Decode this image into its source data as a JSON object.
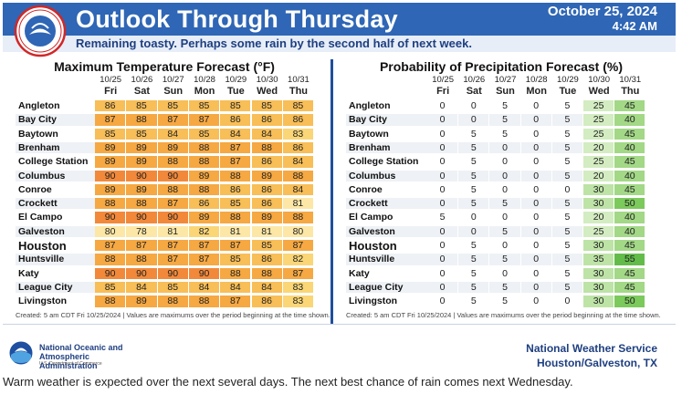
{
  "header": {
    "title": "Outlook Through Thursday",
    "subtitle": "Remaining toasty. Perhaps some rain by the second half of next week.",
    "date": "October 25, 2024",
    "time": "4:42 AM"
  },
  "days": [
    {
      "date": "10/25",
      "day": "Fri"
    },
    {
      "date": "10/26",
      "day": "Sat"
    },
    {
      "date": "10/27",
      "day": "Sun"
    },
    {
      "date": "10/28",
      "day": "Mon"
    },
    {
      "date": "10/29",
      "day": "Tue"
    },
    {
      "date": "10/30",
      "day": "Wed"
    },
    {
      "date": "10/31",
      "day": "Thu"
    }
  ],
  "cities": [
    "Angleton",
    "Bay City",
    "Baytown",
    "Brenham",
    "College Station",
    "Columbus",
    "Conroe",
    "Crockett",
    "El Campo",
    "Galveston",
    "Houston",
    "Huntsville",
    "Katy",
    "League City",
    "Livingston"
  ],
  "temperature": {
    "title": "Maximum Temperature Forecast (°F)",
    "values": [
      [
        86,
        85,
        85,
        85,
        85,
        85,
        85
      ],
      [
        87,
        88,
        87,
        87,
        86,
        86,
        86
      ],
      [
        85,
        85,
        84,
        85,
        84,
        84,
        83
      ],
      [
        89,
        89,
        89,
        88,
        87,
        88,
        86
      ],
      [
        89,
        89,
        88,
        88,
        87,
        86,
        84
      ],
      [
        90,
        90,
        90,
        89,
        88,
        89,
        88
      ],
      [
        89,
        89,
        88,
        88,
        86,
        86,
        84
      ],
      [
        88,
        88,
        87,
        86,
        85,
        86,
        81
      ],
      [
        90,
        90,
        90,
        89,
        88,
        89,
        88
      ],
      [
        80,
        78,
        81,
        82,
        81,
        81,
        80
      ],
      [
        87,
        87,
        87,
        87,
        87,
        85,
        87
      ],
      [
        88,
        88,
        87,
        87,
        85,
        86,
        82
      ],
      [
        90,
        90,
        90,
        90,
        88,
        88,
        87
      ],
      [
        85,
        84,
        85,
        84,
        84,
        84,
        83
      ],
      [
        88,
        89,
        88,
        88,
        87,
        86,
        83
      ]
    ],
    "footnote": "Created: 5 am CDT Fri 10/25/2024  |  Values are maximums over the period beginning at the time shown."
  },
  "precipitation": {
    "title": "Probability of Precipitation Forecast (%)",
    "values": [
      [
        0,
        0,
        5,
        0,
        5,
        25,
        45
      ],
      [
        0,
        0,
        5,
        0,
        5,
        25,
        40
      ],
      [
        0,
        5,
        5,
        0,
        5,
        25,
        45
      ],
      [
        0,
        5,
        0,
        0,
        5,
        20,
        40
      ],
      [
        0,
        5,
        0,
        0,
        5,
        25,
        45
      ],
      [
        0,
        5,
        0,
        0,
        5,
        20,
        40
      ],
      [
        0,
        5,
        0,
        0,
        0,
        30,
        45
      ],
      [
        0,
        5,
        5,
        0,
        5,
        30,
        50
      ],
      [
        5,
        0,
        0,
        0,
        5,
        20,
        40
      ],
      [
        0,
        0,
        5,
        0,
        5,
        25,
        40
      ],
      [
        0,
        5,
        0,
        0,
        5,
        30,
        45
      ],
      [
        0,
        5,
        5,
        0,
        5,
        35,
        55
      ],
      [
        0,
        5,
        0,
        0,
        5,
        30,
        45
      ],
      [
        0,
        5,
        5,
        0,
        5,
        30,
        45
      ],
      [
        0,
        5,
        5,
        0,
        0,
        30,
        50
      ]
    ],
    "footnote": "Created: 5 am CDT Fri 10/25/2024  |  Values are maximums over the period beginning at the time shown."
  },
  "footer": {
    "agency_name": "National Oceanic and Atmospheric Administration",
    "agency_dept": "U.S. Department of Commerce",
    "office_name": "National Weather Service",
    "office_location": "Houston/Galveston, TX"
  },
  "caption": "Warm weather is expected over the next several days. The next best chance of rain comes next Wednesday.",
  "colors": {
    "header_blue": "#2f66b5",
    "title_blue": "#1e3f80",
    "divider_blue": "#1f4f9c"
  }
}
